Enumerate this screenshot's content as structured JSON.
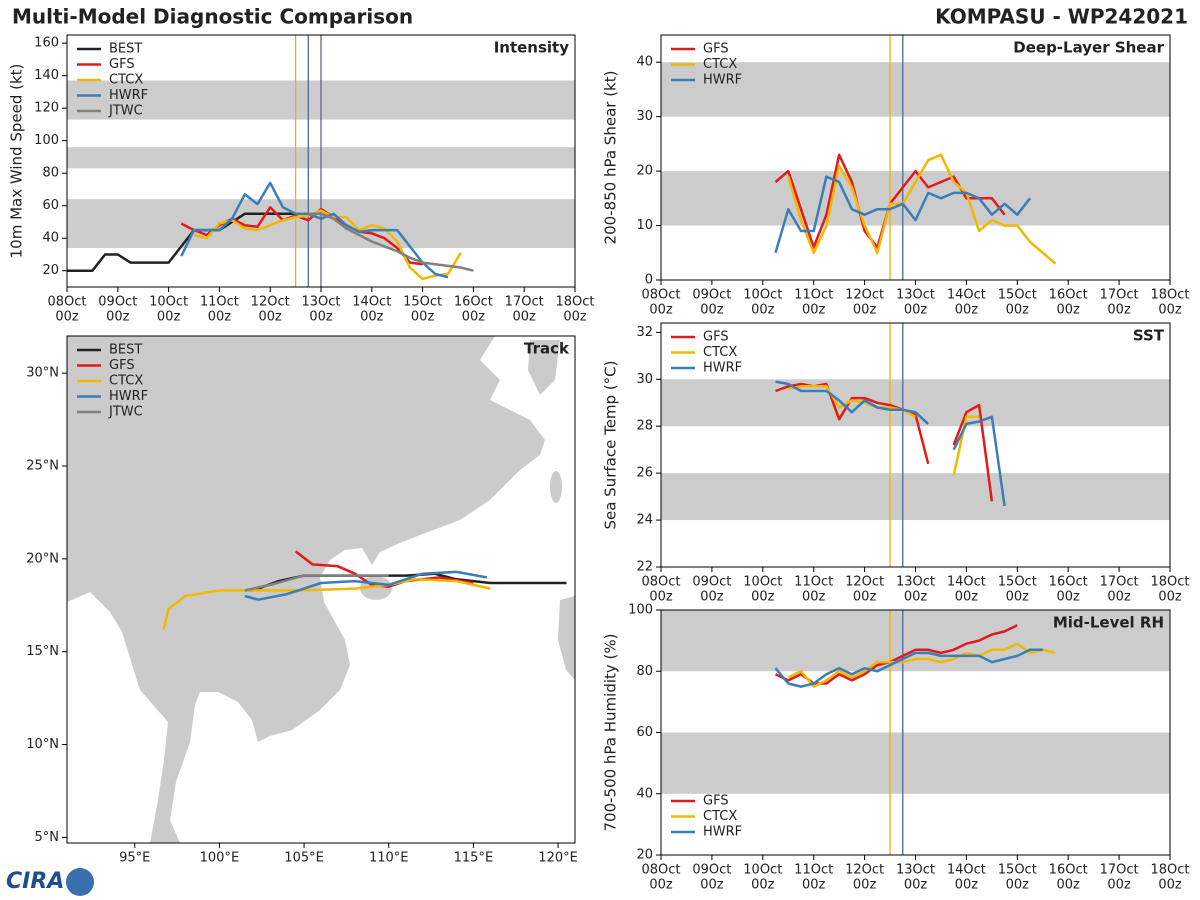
{
  "header": {
    "title": "Multi-Model Diagnostic Comparison",
    "storm": "KOMPASU - WP242021",
    "logo": "CIRA"
  },
  "chart_data": [
    {
      "type": "line",
      "title": "Intensity",
      "ylabel": "10m Max Wind Speed (kt)",
      "legend": "upper left",
      "xlim": [
        0,
        10
      ],
      "ylim": [
        10,
        165
      ],
      "xticks": [
        {
          "value": 0,
          "label": "08Oct",
          "sublabel": "00z"
        },
        {
          "value": 1,
          "label": "09Oct",
          "sublabel": "00z"
        },
        {
          "value": 2,
          "label": "10Oct",
          "sublabel": "00z"
        },
        {
          "value": 3,
          "label": "11Oct",
          "sublabel": "00z"
        },
        {
          "value": 4,
          "label": "12Oct",
          "sublabel": "00z"
        },
        {
          "value": 5,
          "label": "13Oct",
          "sublabel": "00z"
        },
        {
          "value": 6,
          "label": "14Oct",
          "sublabel": "00z"
        },
        {
          "value": 7,
          "label": "15Oct",
          "sublabel": "00z"
        },
        {
          "value": 8,
          "label": "16Oct",
          "sublabel": "00z"
        },
        {
          "value": 9,
          "label": "17Oct",
          "sublabel": "00z"
        },
        {
          "value": 10,
          "label": "18Oct",
          "sublabel": "00z"
        }
      ],
      "yticks": [
        20,
        40,
        60,
        80,
        100,
        120,
        140,
        160
      ],
      "bands": [
        [
          34,
          64
        ],
        [
          83,
          96
        ],
        [
          113,
          137
        ]
      ],
      "vlines": [
        {
          "x": 4.5,
          "color": "#e8b400"
        },
        {
          "x": 4.75,
          "color": "#4a6a9a"
        },
        {
          "x": 5,
          "color": "#666677"
        }
      ],
      "x": [
        0,
        0.25,
        0.5,
        0.75,
        1,
        1.25,
        1.5,
        1.75,
        2,
        2.25,
        2.5,
        2.75,
        3,
        3.25,
        3.5,
        3.75,
        4,
        4.25,
        4.5,
        4.75,
        5,
        5.25,
        5.5,
        5.75,
        6,
        6.25,
        6.5,
        6.75,
        7,
        7.25,
        7.5,
        7.75,
        8
      ],
      "series": [
        {
          "name": "BEST",
          "color": "#222222",
          "values": [
            20,
            20,
            20,
            30,
            30,
            25,
            25,
            25,
            25,
            35,
            45,
            45,
            45,
            50,
            55,
            55,
            55,
            55,
            55,
            55,
            null,
            null,
            null,
            null,
            null,
            null,
            null,
            null,
            null,
            null,
            null,
            null,
            null
          ]
        },
        {
          "name": "GFS",
          "color": "#e31a1c",
          "values": [
            null,
            null,
            null,
            null,
            null,
            null,
            null,
            null,
            null,
            49,
            45,
            42,
            48,
            52,
            48,
            47,
            59,
            51,
            54,
            51,
            58,
            53,
            48,
            44,
            43,
            40,
            34,
            25,
            24,
            null,
            null,
            null,
            null
          ]
        },
        {
          "name": "CTCX",
          "color": "#f0b800",
          "values": [
            null,
            null,
            null,
            null,
            null,
            null,
            null,
            null,
            null,
            null,
            42,
            40,
            49,
            51,
            46,
            45,
            48,
            51,
            53,
            54,
            57,
            53,
            53,
            45,
            48,
            46,
            38,
            22,
            15,
            17,
            18,
            31,
            null
          ]
        },
        {
          "name": "HWRF",
          "color": "#3a7db8",
          "values": [
            null,
            null,
            null,
            null,
            null,
            null,
            null,
            null,
            null,
            29,
            45,
            45,
            45,
            52,
            67,
            61,
            74,
            59,
            55,
            55,
            52,
            55,
            48,
            44,
            45,
            45,
            45,
            35,
            25,
            18,
            16,
            null,
            null
          ]
        },
        {
          "name": "JTWC",
          "color": "#808080",
          "values": [
            null,
            null,
            null,
            null,
            null,
            null,
            null,
            null,
            null,
            null,
            null,
            null,
            null,
            null,
            null,
            null,
            null,
            null,
            null,
            55,
            55,
            52,
            46,
            42,
            38,
            35,
            32,
            28,
            25,
            24,
            23,
            22,
            20
          ]
        }
      ]
    },
    {
      "type": "line",
      "title": "Deep-Layer Shear",
      "ylabel": "200-850 hPa Shear (kt)",
      "legend": "upper left",
      "xlim": [
        0,
        10
      ],
      "ylim": [
        0,
        45
      ],
      "xticks": [
        {
          "value": 0,
          "label": "08Oct",
          "sublabel": "00z"
        },
        {
          "value": 1,
          "label": "09Oct",
          "sublabel": "00z"
        },
        {
          "value": 2,
          "label": "10Oct",
          "sublabel": "00z"
        },
        {
          "value": 3,
          "label": "11Oct",
          "sublabel": "00z"
        },
        {
          "value": 4,
          "label": "12Oct",
          "sublabel": "00z"
        },
        {
          "value": 5,
          "label": "13Oct",
          "sublabel": "00z"
        },
        {
          "value": 6,
          "label": "14Oct",
          "sublabel": "00z"
        },
        {
          "value": 7,
          "label": "15Oct",
          "sublabel": "00z"
        },
        {
          "value": 8,
          "label": "16Oct",
          "sublabel": "00z"
        },
        {
          "value": 9,
          "label": "17Oct",
          "sublabel": "00z"
        },
        {
          "value": 10,
          "label": "18Oct",
          "sublabel": "00z"
        }
      ],
      "yticks": [
        0,
        10,
        20,
        30,
        40
      ],
      "bands": [
        [
          10,
          20
        ],
        [
          30,
          40
        ]
      ],
      "vlines": [
        {
          "x": 4.5,
          "color": "#e8b400"
        },
        {
          "x": 4.75,
          "color": "#4a6a9a"
        }
      ],
      "x": [
        2.25,
        2.5,
        2.75,
        3,
        3.25,
        3.5,
        3.75,
        4,
        4.25,
        4.5,
        4.75,
        5,
        5.25,
        5.5,
        5.75,
        6,
        6.25,
        6.5,
        6.75,
        7,
        7.25,
        7.5,
        7.75
      ],
      "series": [
        {
          "name": "GFS",
          "color": "#e31a1c",
          "values": [
            18,
            20,
            13,
            6,
            12,
            23,
            18,
            9,
            6,
            14,
            17,
            20,
            17,
            18,
            19,
            15,
            15,
            15,
            12,
            null,
            null,
            null,
            null
          ]
        },
        {
          "name": "CTCX",
          "color": "#f0b800",
          "values": [
            null,
            19,
            11,
            5,
            10,
            21,
            17,
            10,
            5,
            14,
            14,
            18,
            22,
            23,
            18,
            16,
            9,
            11,
            10,
            10,
            7,
            5,
            3
          ]
        },
        {
          "name": "HWRF",
          "color": "#3a7db8",
          "values": [
            5,
            13,
            9,
            9,
            19,
            18,
            13,
            12,
            13,
            13,
            14,
            11,
            16,
            15,
            16,
            16,
            15,
            12,
            14,
            12,
            15,
            null,
            null
          ]
        }
      ]
    },
    {
      "type": "line",
      "title": "SST",
      "ylabel": "Sea Surface Temp (°C)",
      "legend": "upper left",
      "xlim": [
        0,
        10
      ],
      "ylim": [
        22,
        32.4
      ],
      "xticks": [
        {
          "value": 0,
          "label": "08Oct",
          "sublabel": "00z"
        },
        {
          "value": 1,
          "label": "09Oct",
          "sublabel": "00z"
        },
        {
          "value": 2,
          "label": "10Oct",
          "sublabel": "00z"
        },
        {
          "value": 3,
          "label": "11Oct",
          "sublabel": "00z"
        },
        {
          "value": 4,
          "label": "12Oct",
          "sublabel": "00z"
        },
        {
          "value": 5,
          "label": "13Oct",
          "sublabel": "00z"
        },
        {
          "value": 6,
          "label": "14Oct",
          "sublabel": "00z"
        },
        {
          "value": 7,
          "label": "15Oct",
          "sublabel": "00z"
        },
        {
          "value": 8,
          "label": "16Oct",
          "sublabel": "00z"
        },
        {
          "value": 9,
          "label": "17Oct",
          "sublabel": "00z"
        },
        {
          "value": 10,
          "label": "18Oct",
          "sublabel": "00z"
        }
      ],
      "yticks": [
        22,
        24,
        26,
        28,
        30,
        32
      ],
      "bands": [
        [
          24,
          26
        ],
        [
          28,
          30
        ]
      ],
      "vlines": [
        {
          "x": 4.5,
          "color": "#e8b400"
        },
        {
          "x": 4.75,
          "color": "#4a6a9a"
        }
      ],
      "x": [
        2.25,
        2.5,
        2.75,
        3,
        3.25,
        3.5,
        3.75,
        4,
        4.25,
        4.5,
        4.75,
        5,
        5.25,
        5.5,
        5.75,
        6,
        6.25,
        6.5,
        6.75,
        7,
        7.25,
        7.5,
        7.75
      ],
      "series": [
        {
          "name": "GFS",
          "color": "#e31a1c",
          "values": [
            29.5,
            29.7,
            29.8,
            29.7,
            29.8,
            28.3,
            29.2,
            29.2,
            29.0,
            28.9,
            28.7,
            28.5,
            26.4,
            null,
            27.2,
            28.6,
            28.9,
            24.8,
            null,
            null,
            null,
            null,
            null
          ]
        },
        {
          "name": "CTCX",
          "color": "#f0b800",
          "values": [
            null,
            29.6,
            29.7,
            29.7,
            29.7,
            28.8,
            29.1,
            29.0,
            28.8,
            28.8,
            28.7,
            28.4,
            null,
            null,
            25.9,
            28.4,
            28.4,
            null,
            null,
            null,
            null,
            null,
            null
          ]
        },
        {
          "name": "HWRF",
          "color": "#3a7db8",
          "values": [
            29.9,
            29.8,
            29.5,
            29.5,
            29.5,
            29.1,
            28.6,
            29.1,
            28.8,
            28.7,
            28.7,
            28.6,
            28.1,
            null,
            27.0,
            28.1,
            28.2,
            28.4,
            24.6,
            null,
            null,
            null,
            null
          ]
        }
      ]
    },
    {
      "type": "line",
      "title": "Mid-Level RH",
      "ylabel": "700-500 hPa Humidity (%)",
      "legend": "lower left",
      "xlim": [
        0,
        10
      ],
      "ylim": [
        20,
        100
      ],
      "xticks": [
        {
          "value": 0,
          "label": "08Oct",
          "sublabel": "00z"
        },
        {
          "value": 1,
          "label": "09Oct",
          "sublabel": "00z"
        },
        {
          "value": 2,
          "label": "10Oct",
          "sublabel": "00z"
        },
        {
          "value": 3,
          "label": "11Oct",
          "sublabel": "00z"
        },
        {
          "value": 4,
          "label": "12Oct",
          "sublabel": "00z"
        },
        {
          "value": 5,
          "label": "13Oct",
          "sublabel": "00z"
        },
        {
          "value": 6,
          "label": "14Oct",
          "sublabel": "00z"
        },
        {
          "value": 7,
          "label": "15Oct",
          "sublabel": "00z"
        },
        {
          "value": 8,
          "label": "16Oct",
          "sublabel": "00z"
        },
        {
          "value": 9,
          "label": "17Oct",
          "sublabel": "00z"
        },
        {
          "value": 10,
          "label": "18Oct",
          "sublabel": "00z"
        }
      ],
      "yticks": [
        20,
        40,
        60,
        80,
        100
      ],
      "bands": [
        [
          40,
          60
        ],
        [
          80,
          100
        ]
      ],
      "vlines": [
        {
          "x": 4.5,
          "color": "#e8b400"
        },
        {
          "x": 4.75,
          "color": "#4a6a9a"
        }
      ],
      "x": [
        2.25,
        2.5,
        2.75,
        3,
        3.25,
        3.5,
        3.75,
        4,
        4.25,
        4.5,
        4.75,
        5,
        5.25,
        5.5,
        5.75,
        6,
        6.25,
        6.5,
        6.75,
        7,
        7.25,
        7.5,
        7.75
      ],
      "series": [
        {
          "name": "GFS",
          "color": "#e31a1c",
          "values": [
            79,
            77,
            79,
            76,
            76,
            79,
            77,
            79,
            82,
            83,
            85,
            87,
            87,
            86,
            87,
            89,
            90,
            92,
            93,
            95,
            null,
            null,
            null
          ]
        },
        {
          "name": "CTCX",
          "color": "#f0b800",
          "values": [
            null,
            78,
            80,
            75,
            77,
            80,
            78,
            80,
            83,
            83,
            83,
            84,
            84,
            83,
            84,
            86,
            85,
            87,
            87,
            89,
            86,
            87,
            86
          ]
        },
        {
          "name": "HWRF",
          "color": "#3a7db8",
          "values": [
            81,
            76,
            75,
            76,
            79,
            81,
            79,
            81,
            80,
            82,
            84,
            86,
            86,
            85,
            85,
            85,
            85,
            83,
            84,
            85,
            87,
            87,
            null
          ]
        }
      ]
    },
    {
      "type": "track",
      "title": "Track",
      "legend": "upper left",
      "xlim": [
        91,
        121
      ],
      "ylim": [
        4.7,
        32
      ],
      "xticks": [
        {
          "value": 95,
          "label": "95°E"
        },
        {
          "value": 100,
          "label": "100°E"
        },
        {
          "value": 105,
          "label": "105°E"
        },
        {
          "value": 110,
          "label": "110°E"
        },
        {
          "value": 115,
          "label": "115°E"
        },
        {
          "value": 120,
          "label": "120°E"
        }
      ],
      "yticks": [
        {
          "value": 5,
          "label": "5°N"
        },
        {
          "value": 10,
          "label": "10°N"
        },
        {
          "value": 15,
          "label": "15°N"
        },
        {
          "value": 20,
          "label": "20°N"
        },
        {
          "value": 25,
          "label": "25°N"
        },
        {
          "value": 30,
          "label": "30°N"
        }
      ],
      "series": [
        {
          "name": "BEST",
          "color": "#222222",
          "x": [
            120.5,
            119,
            116,
            114,
            112.7,
            111,
            108,
            105,
            103.5,
            102,
            101.5
          ],
          "y": [
            18.7,
            18.7,
            18.7,
            18.9,
            19.2,
            19.1,
            19.1,
            19.1,
            18.8,
            18.3,
            18.3
          ]
        },
        {
          "name": "GFS",
          "color": "#e31a1c",
          "x": [
            104.5,
            105.5,
            107,
            108,
            109,
            110,
            111,
            113,
            115
          ],
          "y": [
            20.4,
            19.7,
            19.6,
            19.2,
            18.6,
            18.5,
            18.8,
            19.0,
            18.7
          ]
        },
        {
          "name": "CTCX",
          "color": "#f0b800",
          "x": [
            116,
            114,
            111.5,
            110,
            108,
            105,
            102,
            100,
            98,
            97,
            96.7
          ],
          "y": [
            18.4,
            18.8,
            18.9,
            18.6,
            18.4,
            18.3,
            18.3,
            18.3,
            18.0,
            17.3,
            16.2
          ]
        },
        {
          "name": "HWRF",
          "color": "#3a7db8",
          "x": [
            115.8,
            114,
            112,
            110,
            108,
            106,
            104,
            102.3,
            101.5
          ],
          "y": [
            19.0,
            19.3,
            19.2,
            18.6,
            18.8,
            18.7,
            18.1,
            17.8,
            18.0
          ]
        },
        {
          "name": "JTWC",
          "color": "#808080",
          "x": [
            110,
            107,
            105,
            103,
            101.5
          ],
          "y": [
            19.1,
            19.1,
            19.1,
            18.6,
            18.3
          ]
        }
      ]
    }
  ]
}
